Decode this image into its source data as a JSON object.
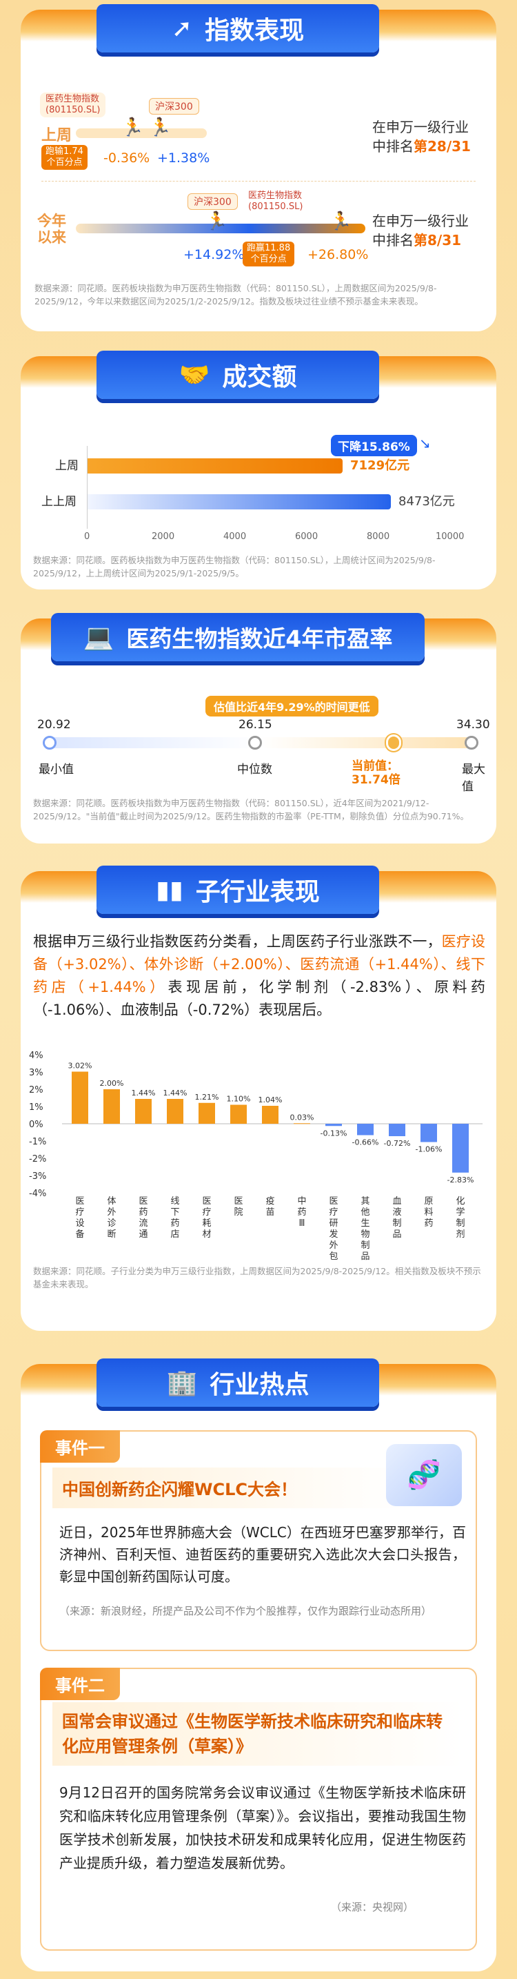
{
  "s1": {
    "title": "指数表现",
    "left_label": "医药生物指数\n(801150.SL)",
    "hs_label": "沪深300",
    "week": "上周",
    "week_gap": "跑输1.74\n个百分点",
    "week_v1": "-0.36%",
    "week_v2": "+1.38%",
    "week_rank_text": "在申万一级行业\n中排名",
    "week_rank": "第28/31",
    "ytd": "今年\n以来",
    "ytd_hs": "沪深300",
    "ytd_idx": "医药生物指数\n(801150.SL)",
    "ytd_v1": "+14.92%",
    "ytd_gap": "跑赢11.88\n个百分点",
    "ytd_v2": "+26.80%",
    "ytd_rank_text": "在申万一级行业\n中排名",
    "ytd_rank": "第8/31",
    "note": "数据来源：同花顺。医药板块指数为申万医药生物指数（代码：801150.SL），上周数据区间为2025/9/8-2025/9/12，今年以来数据区间为2025/1/2-2025/9/12。指数及板块过往业绩不预示基金未来表现。"
  },
  "s2": {
    "title": "成交额",
    "decline": "下降15.86%",
    "rows": [
      {
        "label": "上周",
        "value": "7129亿元",
        "v": 7129
      },
      {
        "label": "上上周",
        "value": "8473亿元",
        "v": 8473
      }
    ],
    "ticks": [
      "0",
      "2000",
      "4000",
      "6000",
      "8000",
      "10000"
    ],
    "note": "数据来源：同花顺。医药板块指数为申万医药生物指数（代码：801150.SL），上周统计区间为2025/9/8-2025/9/12，上上周统计区间为2025/9/1-2025/9/5。"
  },
  "s3": {
    "title": "医药生物指数近4年市盈率",
    "tag": "估值比近4年9.29%的时间更低",
    "min_v": "20.92",
    "mid_v": "26.15",
    "max_v": "34.30",
    "min_l": "最小值",
    "mid_l": "中位数",
    "max_l": "最大值",
    "cur_l": "当前值：",
    "cur_v": "31.74倍",
    "cur_num": 31.74,
    "note": "数据来源：同花顺。医药板块指数为申万医药生物指数（代码：801150.SL），近4年区间为2021/9/12-2025/9/12。\"当前值\"截止时间为2025/9/12。医药生物指数的市盈率（PE-TTM，剔除负值）分位点为90.71%。"
  },
  "s4": {
    "title": "子行业表现",
    "p1": "根据申万三级行业指数医药分类看，上周医药子行业涨跌不一，",
    "p_hl": "医疗设备（+3.02%）、体外诊断（+2.00%）、医药流通（+1.44%）、线下药店（+1.44%）",
    "p2": "表现居前，化学制剂（-2.83%）、原料药（-1.06%）、血液制品（-0.72%）表现居后。",
    "chart_data": {
      "type": "bar",
      "categories": [
        "医疗设备",
        "体外诊断",
        "医药流通",
        "线下药店",
        "医疗耗材",
        "医院",
        "疫苗",
        "中药Ⅲ",
        "医疗研发外包",
        "其他生物制品",
        "血液制品",
        "原料药",
        "化学制剂"
      ],
      "values": [
        3.02,
        2.0,
        1.44,
        1.44,
        1.21,
        1.1,
        1.04,
        0.03,
        -0.13,
        -0.66,
        -0.72,
        -1.06,
        -2.83
      ],
      "labels": [
        "3.02%",
        "2.00%",
        "1.44%",
        "1.44%",
        "1.21%",
        "1.10%",
        "1.04%",
        "0.03%",
        "-0.13%",
        "-0.66%",
        "-0.72%",
        "-1.06%",
        "-2.83%"
      ],
      "yticks": [
        "4%",
        "3%",
        "2%",
        "1%",
        "0%",
        "-1%",
        "-2%",
        "-3%",
        "-4%"
      ],
      "ylim": [
        -4,
        4
      ]
    },
    "note": "数据来源：同花顺。子行业分类为申万三级行业指数，上周数据区间为2025/9/8-2025/9/12。相关指数及板块不预示基金未来表现。"
  },
  "s5": {
    "title": "行业热点",
    "e1_tag": "事件一",
    "e1_title": "中国创新药企闪耀WCLC大会！",
    "e1_body": "近日，2025年世界肺癌大会（WCLC）在西班牙巴塞罗那举行，百济神州、百利天恒、迪哲医药的重要研究入选此次大会口头报告，彰显中国创新药国际认可度。",
    "e1_src": "（来源：新浪财经，所提产品及公司不作为个股推荐，仅作为跟踪行业动态所用）",
    "e2_tag": "事件二",
    "e2_title": "国常会审议通过《生物医学新技术临床研究和临床转化应用管理条例（草案）》",
    "e2_body": "9月12日召开的国务院常务会议审议通过《生物医学新技术临床研究和临床转化应用管理条例（草案）》。会议指出，要推动我国生物医学技术创新发展，加快技术研发和成果转化应用，促进生物医药产业提质升级，着力塑造发展新优势。",
    "e2_src": "（来源：央视网）"
  }
}
